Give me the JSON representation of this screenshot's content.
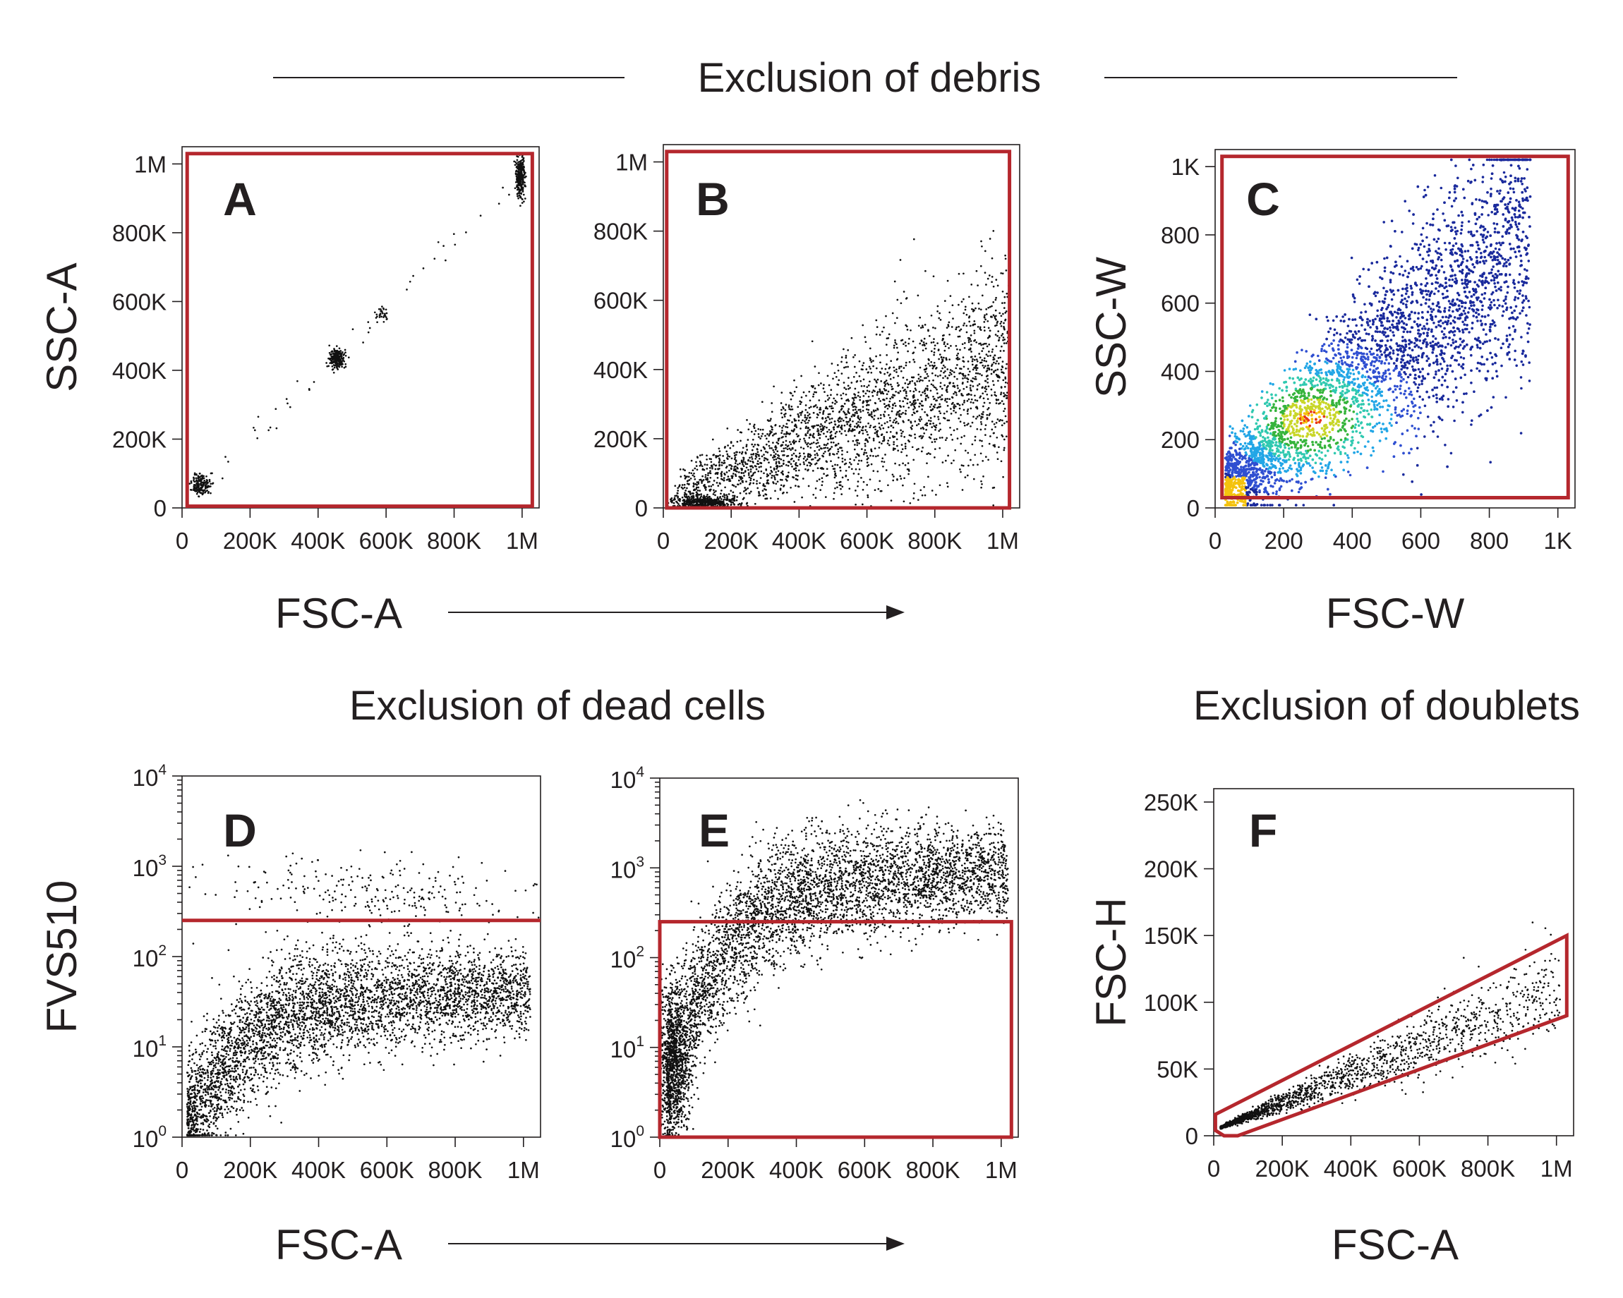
{
  "titles": {
    "debris": "Exclusion of debris",
    "dead_cells": "Exclusion of dead cells",
    "doublets": "Exclusion of doublets"
  },
  "flow_arrows": [
    {
      "id": "top",
      "label": "FSC-A"
    },
    {
      "id": "bottom",
      "label": "FSC-A"
    }
  ],
  "colors": {
    "gate": "#b5272d",
    "dots": "#111111",
    "density_scale": [
      "#1a2a9c",
      "#2f4fd1",
      "#22a6e6",
      "#30c9b0",
      "#36b43c",
      "#c8d628",
      "#f4c20d",
      "#e8331c"
    ]
  },
  "chart_data": [
    {
      "id": "A",
      "letter": "A",
      "type": "scatter",
      "xlabel": "",
      "ylabel": "SSC-A",
      "xlim": [
        0,
        1050000
      ],
      "ylim": [
        0,
        1050000
      ],
      "yscale": "linear",
      "xticks": [
        {
          "v": 0,
          "label": "0"
        },
        {
          "v": 200000,
          "label": "200K"
        },
        {
          "v": 400000,
          "label": "400K"
        },
        {
          "v": 600000,
          "label": "600K"
        },
        {
          "v": 800000,
          "label": "800K"
        },
        {
          "v": 1000000,
          "label": "1M"
        }
      ],
      "yticks": [
        {
          "v": 0,
          "label": "0"
        },
        {
          "v": 200000,
          "label": "200K"
        },
        {
          "v": 400000,
          "label": "400K"
        },
        {
          "v": 600000,
          "label": "600K"
        },
        {
          "v": 800000,
          "label": "800K"
        },
        {
          "v": 1000000,
          "label": "1M"
        }
      ],
      "gate": {
        "shape": "rect",
        "x": [
          15000,
          1030000
        ],
        "y": [
          5000,
          1030000
        ]
      },
      "populations": [
        {
          "n": 150,
          "cx": 55000,
          "cy": 70000,
          "sx": 14000,
          "sy": 16000
        },
        {
          "n": 220,
          "cx": 455000,
          "cy": 435000,
          "sx": 11000,
          "sy": 14000
        },
        {
          "n": 30,
          "cx": 585000,
          "cy": 565000,
          "sx": 10000,
          "sy": 10000
        },
        {
          "n": 260,
          "cx": 995000,
          "cy": 960000,
          "sx": 7000,
          "sy": 28000
        },
        {
          "n": 45,
          "diag": true,
          "x0": 30000,
          "x1": 960000,
          "spread": 15000
        }
      ]
    },
    {
      "id": "B",
      "letter": "B",
      "type": "scatter",
      "xlabel": "",
      "ylabel": "",
      "xlim": [
        0,
        1050000
      ],
      "ylim": [
        0,
        1050000
      ],
      "yscale": "linear",
      "xticks": [
        {
          "v": 0,
          "label": "0"
        },
        {
          "v": 200000,
          "label": "200K"
        },
        {
          "v": 400000,
          "label": "400K"
        },
        {
          "v": 600000,
          "label": "600K"
        },
        {
          "v": 800000,
          "label": "800K"
        },
        {
          "v": 1000000,
          "label": "1M"
        }
      ],
      "yticks": [
        {
          "v": 0,
          "label": "0"
        },
        {
          "v": 200000,
          "label": "200K"
        },
        {
          "v": 400000,
          "label": "400K"
        },
        {
          "v": 600000,
          "label": "600K"
        },
        {
          "v": 800000,
          "label": "800K"
        },
        {
          "v": 1000000,
          "label": "1M"
        }
      ],
      "gate": {
        "shape": "rect",
        "x": [
          10000,
          1020000
        ],
        "y": [
          0,
          1030000
        ]
      },
      "populations": [
        {
          "n": 2600,
          "fan": true,
          "x0": 30000,
          "x1": 1020000,
          "ymax": 620000,
          "yspread": 120000
        },
        {
          "n": 450,
          "cx": 120000,
          "cy": 15000,
          "sx": 45000,
          "sy": 9000
        }
      ]
    },
    {
      "id": "C",
      "letter": "C",
      "type": "density",
      "xlabel": "FSC-W",
      "ylabel": "SSC-W",
      "xlim": [
        0,
        1050
      ],
      "ylim": [
        0,
        1050
      ],
      "yscale": "linear",
      "xticks": [
        {
          "v": 0,
          "label": "0"
        },
        {
          "v": 200,
          "label": "200"
        },
        {
          "v": 400,
          "label": "400"
        },
        {
          "v": 600,
          "label": "600"
        },
        {
          "v": 800,
          "label": "800"
        },
        {
          "v": 1000,
          "label": "1K"
        }
      ],
      "yticks": [
        {
          "v": 0,
          "label": "0"
        },
        {
          "v": 200,
          "label": "200"
        },
        {
          "v": 400,
          "label": "400"
        },
        {
          "v": 600,
          "label": "600"
        },
        {
          "v": 800,
          "label": "800"
        },
        {
          "v": 1000,
          "label": "1K"
        }
      ],
      "gate": {
        "shape": "rect",
        "x": [
          20,
          1030
        ],
        "y": [
          30,
          1030
        ]
      },
      "populations": [
        {
          "n": 5200,
          "cloud": true,
          "x0": 30,
          "x1": 920,
          "slope": 0.82,
          "spread": 150
        }
      ]
    },
    {
      "id": "D",
      "letter": "D",
      "type": "scatter",
      "xlabel": "",
      "ylabel": "FVS510",
      "xlim": [
        0,
        1050000
      ],
      "ylim": [
        0,
        4
      ],
      "yscale": "log10",
      "xticks": [
        {
          "v": 0,
          "label": "0"
        },
        {
          "v": 200000,
          "label": "200K"
        },
        {
          "v": 400000,
          "label": "400K"
        },
        {
          "v": 600000,
          "label": "600K"
        },
        {
          "v": 800000,
          "label": "800K"
        },
        {
          "v": 1000000,
          "label": "1M"
        }
      ],
      "yticks": [
        {
          "v": 0,
          "base": "10",
          "exp": "0"
        },
        {
          "v": 1,
          "base": "10",
          "exp": "1"
        },
        {
          "v": 2,
          "base": "10",
          "exp": "2"
        },
        {
          "v": 3,
          "base": "10",
          "exp": "3"
        },
        {
          "v": 4,
          "base": "10",
          "exp": "4"
        }
      ],
      "gate": {
        "shape": "hline",
        "y": 2.4
      },
      "populations": [
        {
          "n": 4200,
          "curve": true,
          "x0": 15000,
          "x1": 1020000,
          "ylow": 0.1,
          "yhigh": 1.6,
          "spread": 0.28
        },
        {
          "n": 260,
          "cx": 600000,
          "cy": 2.7,
          "sx": 250000,
          "sy": 0.2
        }
      ]
    },
    {
      "id": "E",
      "letter": "E",
      "type": "scatter",
      "xlabel": "",
      "ylabel": "",
      "xlim": [
        0,
        1050000
      ],
      "ylim": [
        0,
        4
      ],
      "yscale": "log10",
      "xticks": [
        {
          "v": 0,
          "label": "0"
        },
        {
          "v": 200000,
          "label": "200K"
        },
        {
          "v": 400000,
          "label": "400K"
        },
        {
          "v": 600000,
          "label": "600K"
        },
        {
          "v": 800000,
          "label": "800K"
        },
        {
          "v": 1000000,
          "label": "1M"
        }
      ],
      "yticks": [
        {
          "v": 0,
          "base": "10",
          "exp": "0"
        },
        {
          "v": 1,
          "base": "10",
          "exp": "1"
        },
        {
          "v": 2,
          "base": "10",
          "exp": "2"
        },
        {
          "v": 3,
          "base": "10",
          "exp": "3"
        },
        {
          "v": 4,
          "base": "10",
          "exp": "4"
        }
      ],
      "gate": {
        "shape": "rect",
        "x": [
          0,
          1030000
        ],
        "y": [
          0,
          2.4
        ]
      },
      "populations": [
        {
          "n": 4200,
          "curve": true,
          "x0": 20000,
          "x1": 1020000,
          "ylow": 0.6,
          "yhigh": 2.95,
          "spread": 0.3
        },
        {
          "n": 900,
          "cx": 40000,
          "cy": 0.8,
          "sx": 25000,
          "sy": 0.45
        }
      ]
    },
    {
      "id": "F",
      "letter": "F",
      "type": "scatter",
      "xlabel": "FSC-A",
      "ylabel": "FSC-H",
      "xlim": [
        0,
        1050000
      ],
      "ylim": [
        0,
        260000
      ],
      "yscale": "linear",
      "xticks": [
        {
          "v": 0,
          "label": "0"
        },
        {
          "v": 200000,
          "label": "200K"
        },
        {
          "v": 400000,
          "label": "400K"
        },
        {
          "v": 600000,
          "label": "600K"
        },
        {
          "v": 800000,
          "label": "800K"
        },
        {
          "v": 1000000,
          "label": "1M"
        }
      ],
      "yticks": [
        {
          "v": 0,
          "label": "0"
        },
        {
          "v": 50000,
          "label": "50K"
        },
        {
          "v": 100000,
          "label": "100K"
        },
        {
          "v": 150000,
          "label": "150K"
        },
        {
          "v": 200000,
          "label": "200K"
        },
        {
          "v": 250000,
          "label": "250K"
        }
      ],
      "gate": {
        "shape": "polygon",
        "points": [
          [
            5000,
            16000
          ],
          [
            1030000,
            150000
          ],
          [
            1030000,
            90000
          ],
          [
            70000,
            0
          ],
          [
            30000,
            0
          ],
          [
            5000,
            4000
          ]
        ]
      },
      "populations": [
        {
          "n": 1700,
          "band": true,
          "x0": 20000,
          "x1": 1010000,
          "slope": 0.105,
          "spread": 0.18
        }
      ]
    }
  ]
}
